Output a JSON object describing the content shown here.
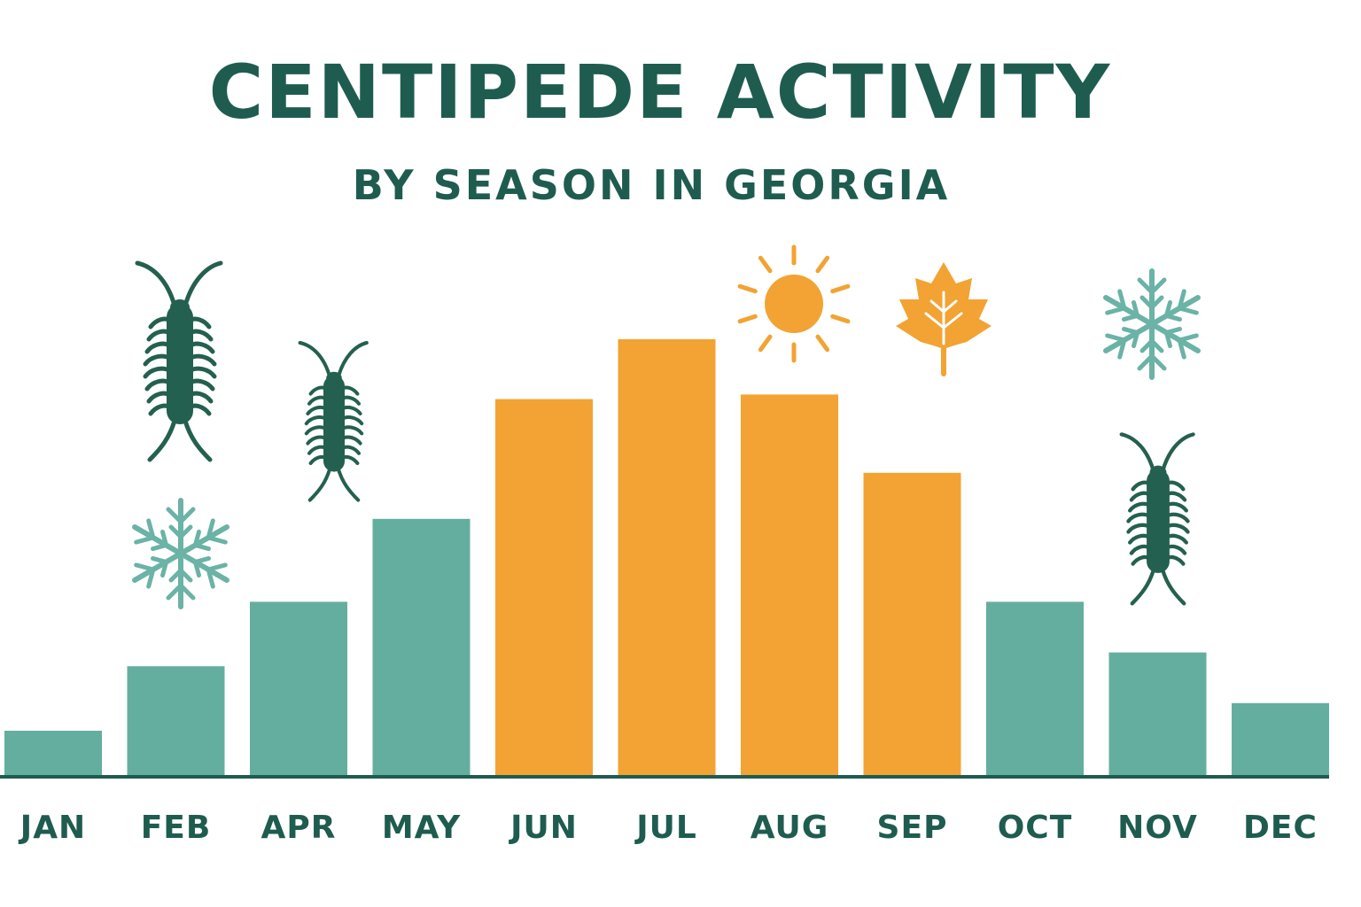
{
  "chart_data": {
    "type": "bar",
    "title": "CENTIPEDE ACTIVITY",
    "subtitle": "BY SEASON IN GEORGIA",
    "categories": [
      "JAN",
      "FEB",
      "APR",
      "MAY",
      "JUN",
      "JUL",
      "AUG",
      "SEP",
      "OCT",
      "NOV",
      "DEC"
    ],
    "values": [
      10,
      24,
      38,
      56,
      82,
      95,
      83,
      66,
      38,
      27,
      16
    ],
    "ylim": [
      0,
      100
    ],
    "xlabel": "",
    "ylabel": "",
    "grid": false,
    "bar_season": [
      "cool",
      "cool",
      "cool",
      "cool",
      "warm",
      "warm",
      "warm",
      "warm",
      "cool",
      "cool",
      "cool"
    ],
    "colors": {
      "cool": "#64ae9f",
      "warm": "#f2a333",
      "text": "#1f5c50",
      "axis": "#1f5c50",
      "centipede": "#24604f",
      "snowflake": "#6ab3a6",
      "sun": "#f2a333",
      "leaf": "#f2a333"
    },
    "decorations": [
      "centipede-icon",
      "centipede-icon",
      "snowflake-icon",
      "sun-icon",
      "leaf-icon",
      "snowflake-icon",
      "centipede-icon"
    ]
  }
}
